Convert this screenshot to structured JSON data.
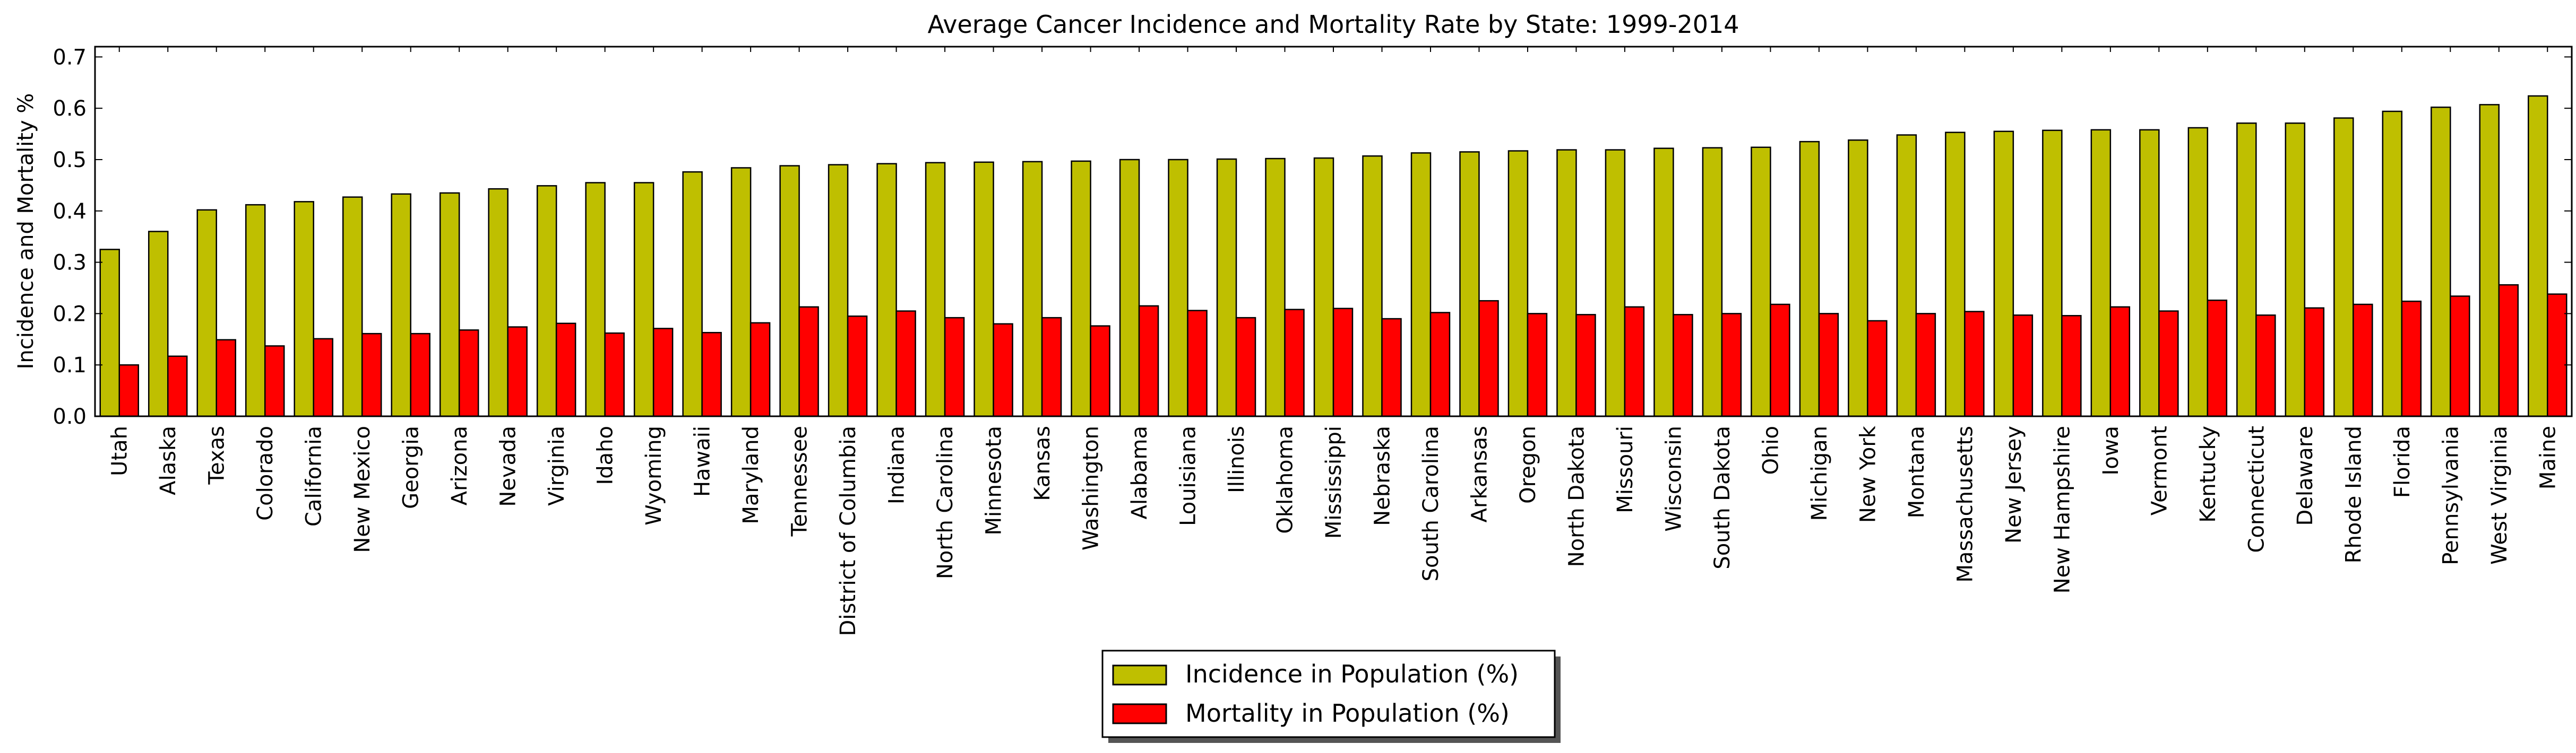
{
  "chart_data": {
    "type": "bar",
    "title": "Average Cancer Incidence and Mortality Rate by State: 1999-2014",
    "xlabel": "",
    "ylabel": "Incidence and Mortality %",
    "ylim": [
      0,
      0.72
    ],
    "yticks": [
      "0.0",
      "0.1",
      "0.2",
      "0.3",
      "0.4",
      "0.5",
      "0.6",
      "0.7"
    ],
    "grid": false,
    "legend_position": "bottom-center",
    "categories": [
      "Utah",
      "Alaska",
      "Texas",
      "Colorado",
      "California",
      "New Mexico",
      "Georgia",
      "Arizona",
      "Nevada",
      "Virginia",
      "Idaho",
      "Wyoming",
      "Hawaii",
      "Maryland",
      "Tennessee",
      "District of Columbia",
      "Indiana",
      "North Carolina",
      "Minnesota",
      "Kansas",
      "Washington",
      "Alabama",
      "Louisiana",
      "Illinois",
      "Oklahoma",
      "Mississippi",
      "Nebraska",
      "South Carolina",
      "Arkansas",
      "Oregon",
      "North Dakota",
      "Missouri",
      "Wisconsin",
      "South Dakota",
      "Ohio",
      "Michigan",
      "New York",
      "Montana",
      "Massachusetts",
      "New Jersey",
      "New Hampshire",
      "Iowa",
      "Vermont",
      "Kentucky",
      "Connecticut",
      "Delaware",
      "Rhode Island",
      "Florida",
      "Pennsylvania",
      "West Virginia",
      "Maine"
    ],
    "series": [
      {
        "name": "Incidence in Population (%)",
        "color": "#bfbf00",
        "values": [
          0.325,
          0.36,
          0.402,
          0.412,
          0.418,
          0.427,
          0.433,
          0.435,
          0.443,
          0.449,
          0.455,
          0.455,
          0.476,
          0.484,
          0.488,
          0.49,
          0.492,
          0.494,
          0.495,
          0.496,
          0.497,
          0.5,
          0.5,
          0.501,
          0.502,
          0.503,
          0.507,
          0.513,
          0.515,
          0.517,
          0.519,
          0.519,
          0.522,
          0.523,
          0.524,
          0.535,
          0.538,
          0.548,
          0.553,
          0.555,
          0.557,
          0.558,
          0.558,
          0.562,
          0.571,
          0.571,
          0.581,
          0.594,
          0.602,
          0.607,
          0.624
        ]
      },
      {
        "name": "Mortality in Population (%)",
        "color": "#ff0000",
        "values": [
          0.1,
          0.117,
          0.149,
          0.137,
          0.151,
          0.161,
          0.161,
          0.168,
          0.174,
          0.181,
          0.162,
          0.171,
          0.163,
          0.182,
          0.213,
          0.195,
          0.205,
          0.192,
          0.18,
          0.192,
          0.176,
          0.215,
          0.206,
          0.192,
          0.208,
          0.21,
          0.19,
          0.202,
          0.225,
          0.2,
          0.198,
          0.213,
          0.198,
          0.2,
          0.218,
          0.2,
          0.186,
          0.2,
          0.204,
          0.197,
          0.196,
          0.213,
          0.205,
          0.226,
          0.197,
          0.211,
          0.218,
          0.224,
          0.234,
          0.256,
          0.238
        ]
      }
    ]
  }
}
